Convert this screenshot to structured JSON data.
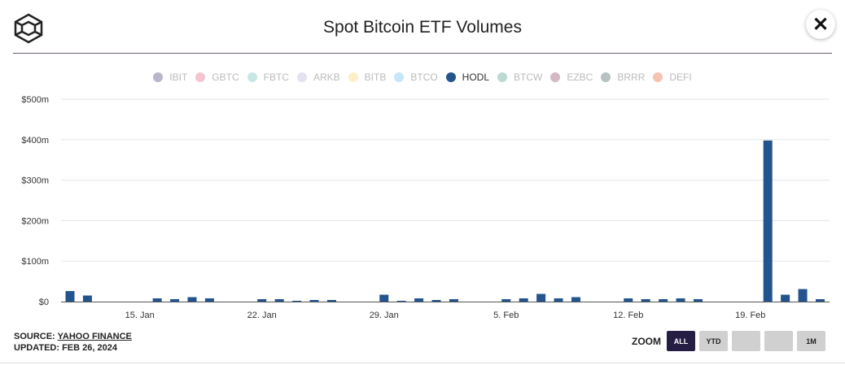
{
  "header": {
    "title": "Spot Bitcoin ETF Volumes",
    "close_label": "✕"
  },
  "legend": [
    {
      "name": "IBIT",
      "color": "#b9b6cb",
      "active": false
    },
    {
      "name": "GBTC",
      "color": "#f3c6cd",
      "active": false
    },
    {
      "name": "FBTC",
      "color": "#c8e6e5",
      "active": false
    },
    {
      "name": "ARKB",
      "color": "#e4e1f2",
      "active": false
    },
    {
      "name": "BITB",
      "color": "#fdf0c4",
      "active": false
    },
    {
      "name": "BTCO",
      "color": "#c7e6f8",
      "active": false
    },
    {
      "name": "HODL",
      "color": "#23548d",
      "active": true
    },
    {
      "name": "BTCW",
      "color": "#bcd9d2",
      "active": false
    },
    {
      "name": "EZBC",
      "color": "#d2b9c3",
      "active": false
    },
    {
      "name": "BRRR",
      "color": "#b6c1c1",
      "active": false
    },
    {
      "name": "DEFI",
      "color": "#f6c3b3",
      "active": false
    }
  ],
  "chart_data": {
    "type": "bar",
    "series": [
      {
        "name": "HODL",
        "color": "#23548d"
      }
    ],
    "x": [
      "2024-01-11",
      "2024-01-12",
      "2024-01-16",
      "2024-01-17",
      "2024-01-18",
      "2024-01-19",
      "2024-01-22",
      "2024-01-23",
      "2024-01-24",
      "2024-01-25",
      "2024-01-26",
      "2024-01-29",
      "2024-01-30",
      "2024-01-31",
      "2024-02-01",
      "2024-02-02",
      "2024-02-05",
      "2024-02-06",
      "2024-02-07",
      "2024-02-08",
      "2024-02-09",
      "2024-02-12",
      "2024-02-13",
      "2024-02-14",
      "2024-02-15",
      "2024-02-16",
      "2024-02-20",
      "2024-02-21",
      "2024-02-22",
      "2024-02-23"
    ],
    "values": [
      26,
      15,
      8,
      6,
      11,
      8,
      6,
      6,
      2,
      4,
      4,
      17,
      2,
      8,
      4,
      6,
      6,
      8,
      19,
      8,
      11,
      8,
      6,
      6,
      8,
      6,
      398,
      17,
      31,
      6
    ],
    "unit": "$m",
    "ylim": [
      0,
      500
    ],
    "yticks": [
      "$0",
      "$100m",
      "$200m",
      "$300m",
      "$400m",
      "$500m"
    ],
    "xticks": [
      {
        "label": "15. Jan",
        "date": "2024-01-15"
      },
      {
        "label": "22. Jan",
        "date": "2024-01-22"
      },
      {
        "label": "29. Jan",
        "date": "2024-01-29"
      },
      {
        "label": "5. Feb",
        "date": "2024-02-05"
      },
      {
        "label": "12. Feb",
        "date": "2024-02-12"
      },
      {
        "label": "19. Feb",
        "date": "2024-02-19"
      }
    ],
    "grid": true,
    "legend_position": "top"
  },
  "footer": {
    "source_label": "SOURCE:",
    "source_name": "YAHOO FINANCE",
    "updated": "UPDATED: FEB 26, 2024"
  },
  "zoom": {
    "label": "ZOOM",
    "buttons": [
      {
        "label": "ALL",
        "active": true
      },
      {
        "label": "YTD",
        "active": false
      },
      {
        "label": "",
        "active": false
      },
      {
        "label": "",
        "active": false
      },
      {
        "label": "1M",
        "active": false
      }
    ]
  }
}
